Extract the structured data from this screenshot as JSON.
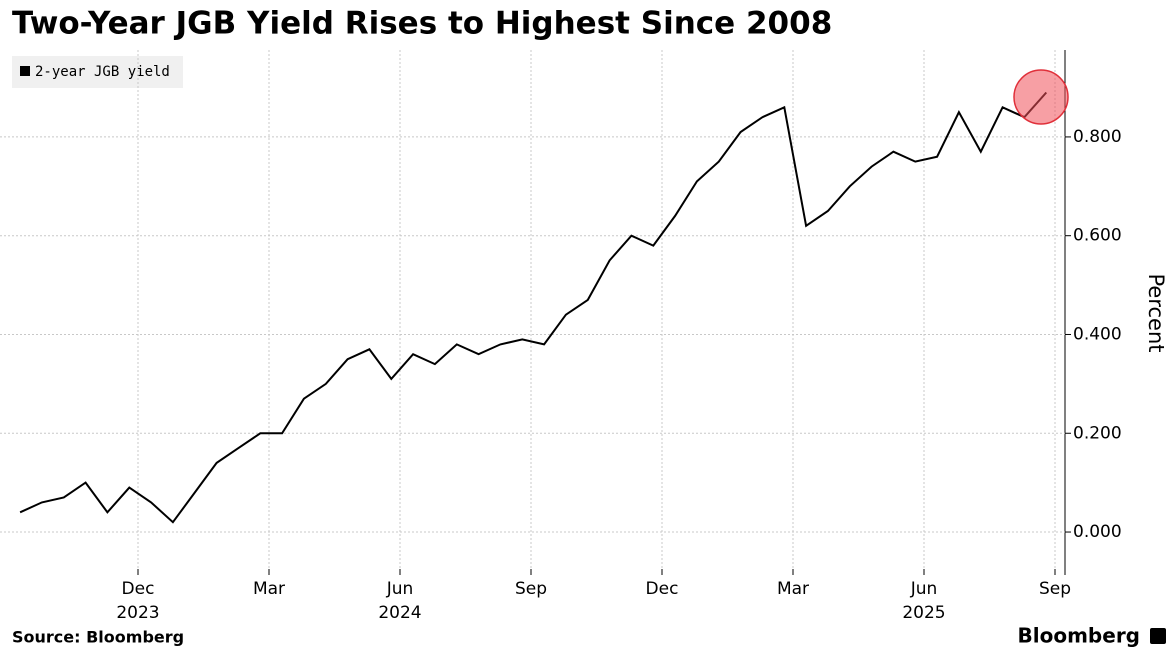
{
  "chart_data": {
    "type": "line",
    "title": "Two-Year JGB Yield Rises to Highest Since 2008",
    "y_label": "Percent",
    "source": "Source: Bloomberg",
    "brand": "Bloomberg",
    "legend": "top-left",
    "grid": true,
    "x": [
      "2023-09",
      "2023-09",
      "2023-10",
      "2023-10",
      "2023-11",
      "2023-11",
      "2023-12",
      "2023-12",
      "2024-01",
      "2024-01",
      "2024-02",
      "2024-02",
      "2024-03",
      "2024-03",
      "2024-04",
      "2024-04",
      "2024-05",
      "2024-05",
      "2024-06",
      "2024-06",
      "2024-07",
      "2024-07",
      "2024-08",
      "2024-08",
      "2024-09",
      "2024-09",
      "2024-10",
      "2024-10",
      "2024-11",
      "2024-11",
      "2024-12",
      "2024-12",
      "2025-01",
      "2025-01",
      "2025-02",
      "2025-02",
      "2025-03",
      "2025-03",
      "2025-04",
      "2025-04",
      "2025-05",
      "2025-05",
      "2025-06",
      "2025-06",
      "2025-07",
      "2025-07",
      "2025-08",
      "2025-08"
    ],
    "series": [
      {
        "name": "2-year JGB yield",
        "color": "#000000",
        "values": [
          0.04,
          0.06,
          0.07,
          0.1,
          0.04,
          0.09,
          0.06,
          0.02,
          0.08,
          0.14,
          0.17,
          0.2,
          0.2,
          0.27,
          0.3,
          0.35,
          0.37,
          0.31,
          0.36,
          0.34,
          0.38,
          0.36,
          0.38,
          0.39,
          0.38,
          0.44,
          0.47,
          0.55,
          0.6,
          0.58,
          0.64,
          0.71,
          0.75,
          0.81,
          0.84,
          0.86,
          0.62,
          0.65,
          0.7,
          0.74,
          0.77,
          0.75,
          0.76,
          0.85,
          0.77,
          0.86,
          0.84,
          0.89
        ]
      }
    ],
    "xticks": [
      {
        "value": "2023-12",
        "label": "Dec"
      },
      {
        "value": "2024-03",
        "label": "Mar"
      },
      {
        "value": "2024-06",
        "label": "Jun"
      },
      {
        "value": "2024-09",
        "label": "Sep"
      },
      {
        "value": "2024-12",
        "label": "Dec"
      },
      {
        "value": "2025-03",
        "label": "Mar"
      },
      {
        "value": "2025-06",
        "label": "Jun"
      },
      {
        "value": "2025-09",
        "label": "Sep"
      }
    ],
    "year_labels": [
      {
        "value": "2023-12",
        "label": "2023"
      },
      {
        "value": "2024-06",
        "label": "2024"
      },
      {
        "value": "2025-06",
        "label": "2025"
      }
    ],
    "ylim": [
      -0.087,
      0.976
    ],
    "yticks": [
      {
        "value": 0,
        "label": "0.000"
      },
      {
        "value": 0.2,
        "label": "0.200"
      },
      {
        "value": 0.4,
        "label": "0.400"
      },
      {
        "value": 0.6,
        "label": "0.600"
      },
      {
        "value": 0.8,
        "label": "0.800"
      }
    ]
  }
}
